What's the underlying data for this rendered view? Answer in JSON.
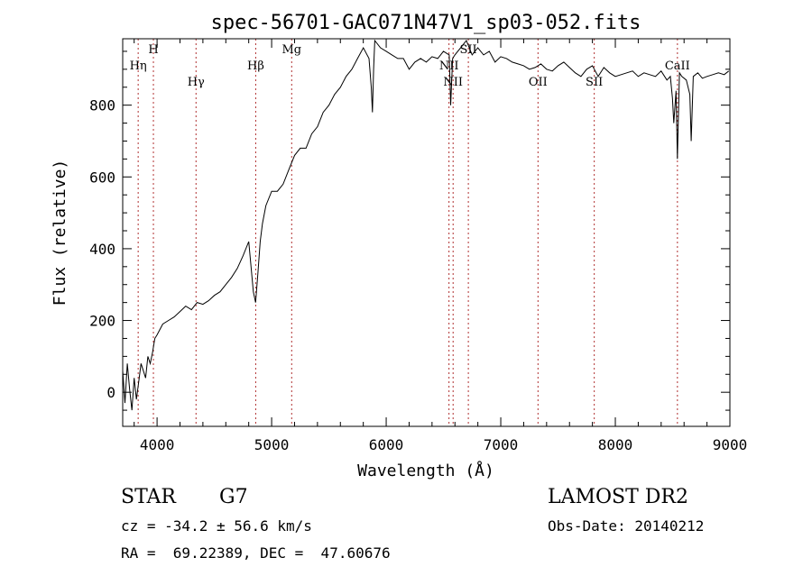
{
  "chart_data": {
    "type": "line",
    "title": "spec-56701-GAC071N47V1_sp03-052.fits",
    "xlabel": "Wavelength (Å)",
    "ylabel": "Flux (relative)",
    "xlim": [
      3700,
      9000
    ],
    "ylim": [
      -95,
      985
    ],
    "xticks": [
      4000,
      5000,
      6000,
      7000,
      8000,
      9000
    ],
    "yticks": [
      0,
      200,
      400,
      600,
      800
    ],
    "grid": false,
    "line_color": "#000000",
    "marker_color": "#b03030",
    "series": [
      {
        "x": [
          3700,
          3720,
          3740,
          3760,
          3780,
          3800,
          3820,
          3840,
          3860,
          3880,
          3900,
          3920,
          3940,
          3960,
          3980,
          4000,
          4050,
          4100,
          4150,
          4200,
          4250,
          4300,
          4350,
          4400,
          4450,
          4500,
          4550,
          4600,
          4650,
          4700,
          4750,
          4800,
          4840,
          4860,
          4880,
          4900,
          4920,
          4950,
          5000,
          5050,
          5100,
          5150,
          5200,
          5250,
          5300,
          5350,
          5400,
          5450,
          5500,
          5550,
          5600,
          5650,
          5700,
          5750,
          5800,
          5850,
          5870,
          5880,
          5890,
          5900,
          5950,
          6000,
          6050,
          6100,
          6150,
          6200,
          6250,
          6300,
          6350,
          6400,
          6450,
          6500,
          6550,
          6563,
          6580,
          6600,
          6650,
          6700,
          6750,
          6800,
          6850,
          6900,
          6950,
          7000,
          7050,
          7100,
          7150,
          7200,
          7250,
          7300,
          7350,
          7400,
          7450,
          7500,
          7550,
          7600,
          7650,
          7700,
          7750,
          7800,
          7850,
          7900,
          7950,
          8000,
          8050,
          8100,
          8150,
          8200,
          8250,
          8300,
          8350,
          8400,
          8450,
          8480,
          8498,
          8510,
          8530,
          8542,
          8560,
          8580,
          8620,
          8650,
          8662,
          8680,
          8720,
          8760,
          8800,
          8850,
          8900,
          8950,
          8990
        ],
        "y": [
          60,
          -30,
          80,
          10,
          -50,
          40,
          -20,
          30,
          80,
          60,
          40,
          100,
          80,
          110,
          150,
          160,
          190,
          200,
          210,
          225,
          240,
          230,
          250,
          245,
          255,
          270,
          280,
          300,
          320,
          345,
          380,
          420,
          280,
          250,
          330,
          420,
          470,
          520,
          560,
          560,
          580,
          620,
          660,
          680,
          680,
          720,
          740,
          780,
          800,
          830,
          850,
          880,
          900,
          930,
          960,
          930,
          850,
          780,
          900,
          980,
          960,
          950,
          940,
          930,
          930,
          900,
          920,
          930,
          920,
          935,
          930,
          950,
          940,
          800,
          930,
          940,
          960,
          980,
          940,
          960,
          940,
          950,
          920,
          935,
          930,
          920,
          915,
          910,
          900,
          905,
          915,
          900,
          895,
          910,
          920,
          905,
          890,
          880,
          900,
          910,
          880,
          905,
          890,
          880,
          885,
          890,
          895,
          880,
          890,
          885,
          880,
          895,
          870,
          880,
          820,
          750,
          840,
          650,
          890,
          880,
          870,
          830,
          700,
          880,
          890,
          875,
          880,
          885,
          890,
          885,
          895
        ]
      }
    ],
    "lines": [
      {
        "label": "Hη",
        "wavelength": 3835,
        "label_flux": 900
      },
      {
        "label": "H",
        "wavelength": 3968,
        "label_flux": 945
      },
      {
        "label": "Hγ",
        "wavelength": 4340,
        "label_flux": 855
      },
      {
        "label": "Hβ",
        "wavelength": 4861,
        "label_flux": 900
      },
      {
        "label": "Mg",
        "wavelength": 5175,
        "label_flux": 945
      },
      {
        "label": "NII",
        "wavelength": 6548,
        "label_flux": 900
      },
      {
        "label": "NII",
        "wavelength": 6584,
        "label_flux": 855
      },
      {
        "label": "SII",
        "wavelength": 6717,
        "label_flux": 945
      },
      {
        "label": "OII",
        "wavelength": 7325,
        "label_flux": 855
      },
      {
        "label": "SII",
        "wavelength": 7816,
        "label_flux": 855
      },
      {
        "label": "CaII",
        "wavelength": 8542,
        "label_flux": 900
      }
    ]
  },
  "info": {
    "object_class": "STAR",
    "subclass": "G7",
    "survey": "LAMOST DR2",
    "redshift": "cz = -34.2 ± 56.6 km/s",
    "obs_date": "Obs-Date: 20140212",
    "coordinates": "RA =  69.22389, DEC =  47.60676"
  }
}
